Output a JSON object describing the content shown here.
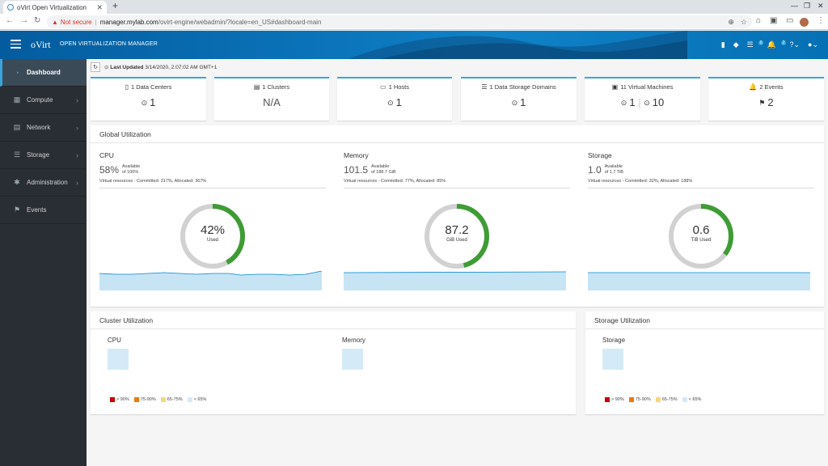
{
  "browser": {
    "tab_title": "oVirt Open Virtualization",
    "not_secure": "Not secure",
    "url_host": "manager.mylab.com",
    "url_path": "/ovirt-engine/webadmin/?locale=en_US#dashboard-main"
  },
  "header": {
    "brand": "oVirt",
    "product": "OPEN VIRTUALIZATION MANAGER",
    "tasks_badge": "0",
    "events_badge": "2"
  },
  "sidebar": {
    "items": [
      {
        "label": "Dashboard",
        "icon": "dashboard-icon"
      },
      {
        "label": "Compute",
        "icon": "compute-icon"
      },
      {
        "label": "Network",
        "icon": "network-icon"
      },
      {
        "label": "Storage",
        "icon": "storage-icon"
      },
      {
        "label": "Administration",
        "icon": "gear-icon"
      },
      {
        "label": "Events",
        "icon": "flag-icon"
      }
    ]
  },
  "toolbar": {
    "last_updated_label": "Last Updated",
    "last_updated_value": "3/14/2020, 2:07:02 AM GMT+1"
  },
  "cards": {
    "datacenters": {
      "title": "1 Data Centers",
      "value": "1"
    },
    "clusters": {
      "title": "1 Clusters",
      "value": "N/A"
    },
    "hosts": {
      "title": "1 Hosts",
      "value": "1"
    },
    "storage_domains": {
      "title": "1 Data Storage Domains",
      "value": "1"
    },
    "vms": {
      "title": "11 Virtual Machines",
      "value_up": "1",
      "value_down": "10"
    },
    "events": {
      "title": "2 Events",
      "value": "2"
    }
  },
  "global_utilization": {
    "title": "Global Utilization",
    "cpu": {
      "name": "CPU",
      "big": "58%",
      "avail_label": "Available",
      "avail_of": "of 100%",
      "vr": "Virtual resources - Committed: 317%, Allocated: 367%",
      "donut_value": "42%",
      "donut_unit": "Used",
      "used_fraction": 0.42
    },
    "memory": {
      "name": "Memory",
      "big": "101.5",
      "avail_label": "Available",
      "avail_of": "of 188.7 GiB",
      "vr": "Virtual resources - Committed: 77%, Allocated: 85%",
      "donut_value": "87.2",
      "donut_unit": "GiB Used",
      "used_fraction": 0.462
    },
    "storage": {
      "name": "Storage",
      "big": "1.0",
      "avail_label": "Available",
      "avail_of": "of 1.7 TiB",
      "vr": "Virtual resources - Committed: 32%, Allocated: 188%",
      "donut_value": "0.6",
      "donut_unit": "TiB Used",
      "used_fraction": 0.353
    }
  },
  "cluster_utilization": {
    "title": "Cluster Utilization",
    "cpu_label": "CPU",
    "memory_label": "Memory"
  },
  "storage_utilization": {
    "title": "Storage Utilization",
    "storage_label": "Storage"
  },
  "legend": [
    {
      "label": "> 90%",
      "color": "#cc0000"
    },
    {
      "label": "75-90%",
      "color": "#ec7a08"
    },
    {
      "label": "65-75%",
      "color": "#f9d67a"
    },
    {
      "label": "< 65%",
      "color": "#d4ebf7"
    }
  ],
  "colors": {
    "accent": "#39a5dc",
    "donut_used": "#3f9c35",
    "donut_track": "#d1d1d1",
    "spark_fill": "#c7e4f5",
    "spark_line": "#0088ce"
  }
}
